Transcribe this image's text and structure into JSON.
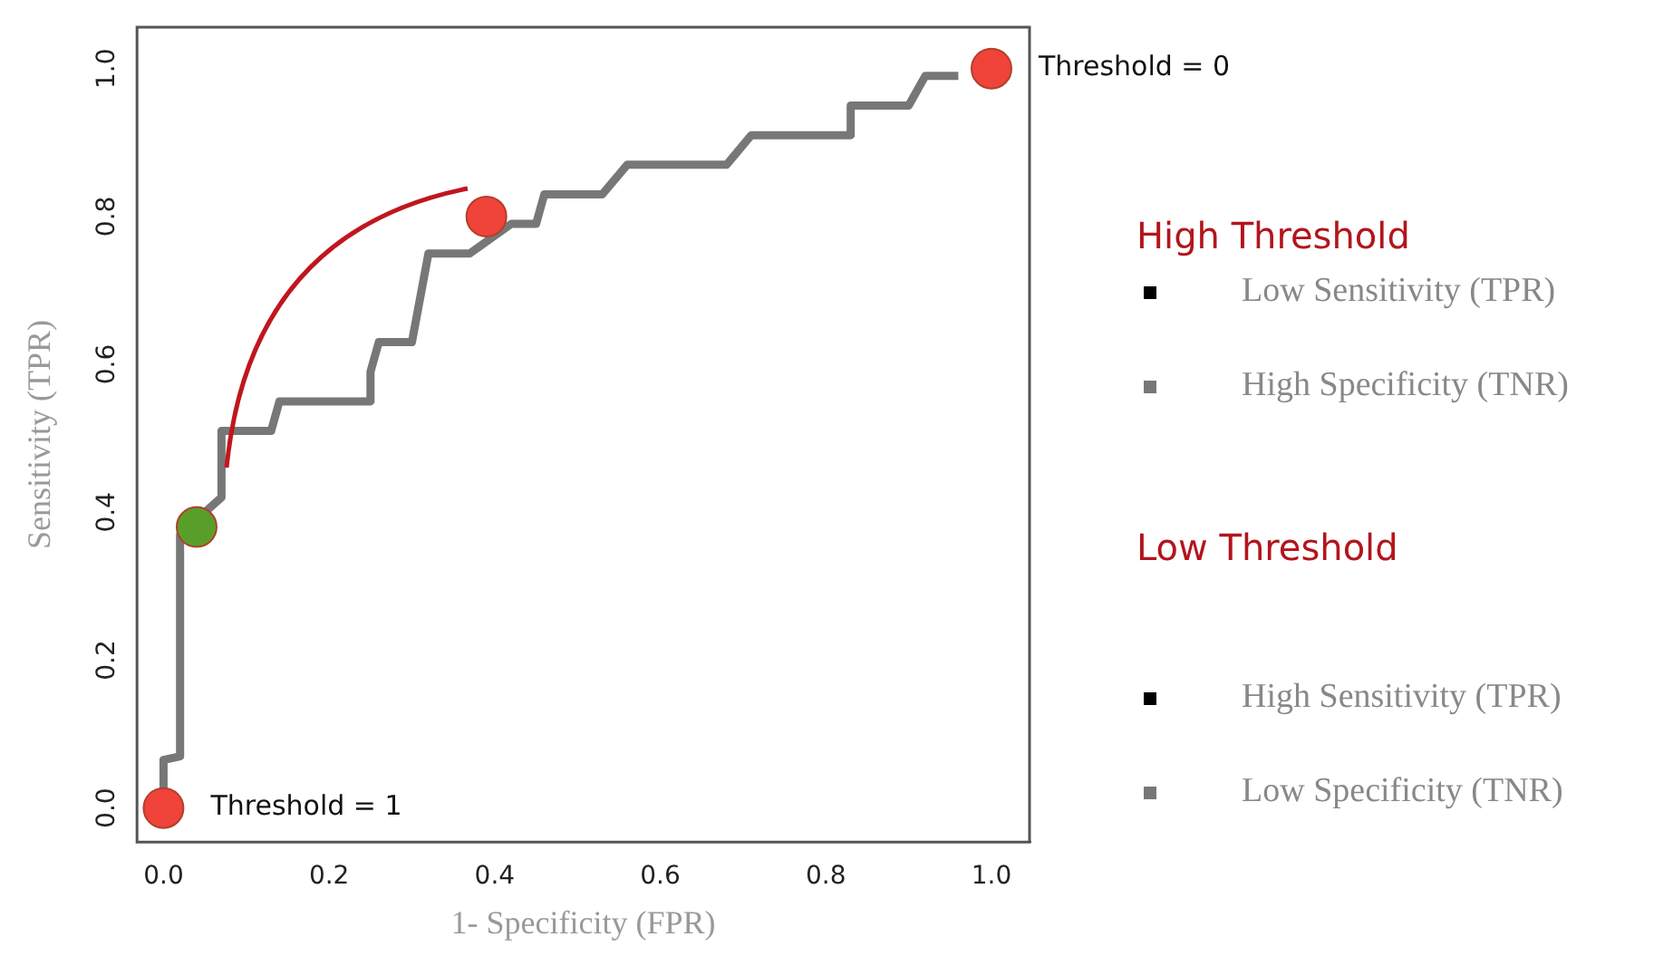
{
  "chart_data": {
    "type": "line",
    "xlabel": "1- Specificity (FPR)",
    "ylabel": "Sensitivity (TPR)",
    "xlim": [
      -0.032,
      1.046
    ],
    "ylim": [
      -0.046,
      1.056
    ],
    "xticks": [
      {
        "value": 0,
        "label": "0.0"
      },
      {
        "value": 0.2,
        "label": "0.2"
      },
      {
        "value": 0.4,
        "label": "0.4"
      },
      {
        "value": 0.6,
        "label": "0.6"
      },
      {
        "value": 0.8,
        "label": "0.8"
      },
      {
        "value": 1,
        "label": "1.0"
      }
    ],
    "yticks": [
      {
        "value": 0,
        "label": "0.0"
      },
      {
        "value": 0.2,
        "label": "0.2"
      },
      {
        "value": 0.4,
        "label": "0.4"
      },
      {
        "value": 0.6,
        "label": "0.6"
      },
      {
        "value": 0.8,
        "label": "0.8"
      },
      {
        "value": 1,
        "label": "1.0"
      }
    ],
    "grid": false,
    "legend": false,
    "series": [
      {
        "type": "line",
        "color": "#777777",
        "marker": "none",
        "line_style": "solid",
        "x": [
          0,
          0,
          0.02,
          0.02,
          0.04,
          0.07,
          0.07,
          0.13,
          0.14,
          0.25,
          0.25,
          0.26,
          0.3,
          0.32,
          0.37,
          0.42,
          0.45,
          0.46,
          0.53,
          0.56,
          0.68,
          0.71,
          0.83,
          0.83,
          0.9,
          0.92,
          0.96
        ],
        "values": [
          0,
          0.065,
          0.07,
          0.37,
          null,
          0.42,
          0.51,
          0.51,
          0.55,
          0.55,
          0.59,
          0.63,
          0.63,
          0.75,
          0.75,
          0.79,
          0.79,
          0.83,
          0.83,
          0.87,
          0.87,
          0.91,
          0.91,
          0.95,
          0.95,
          0.99,
          0.99
        ]
      },
      {
        "type": "scatter",
        "colors": [
          "#f0433a",
          "#5a9e2a",
          "#f0433a",
          "#f0433a"
        ],
        "marker": "circle",
        "x": [
          0,
          0.04,
          0.39,
          1.0
        ],
        "values": [
          0,
          0.38,
          0.8,
          1.0
        ]
      }
    ],
    "annotations": [
      {
        "text": "Threshold = 1",
        "x": 0,
        "y": 0
      },
      {
        "text": "Threshold = 0",
        "x": 1.0,
        "y": 1.0
      },
      "High Threshold",
      "Low Sensitivity (TPR)",
      "High Specificity (TNR)",
      "Low Threshold",
      "High Sensitivity (TPR)",
      "Low Specificity (TNR)"
    ]
  }
}
